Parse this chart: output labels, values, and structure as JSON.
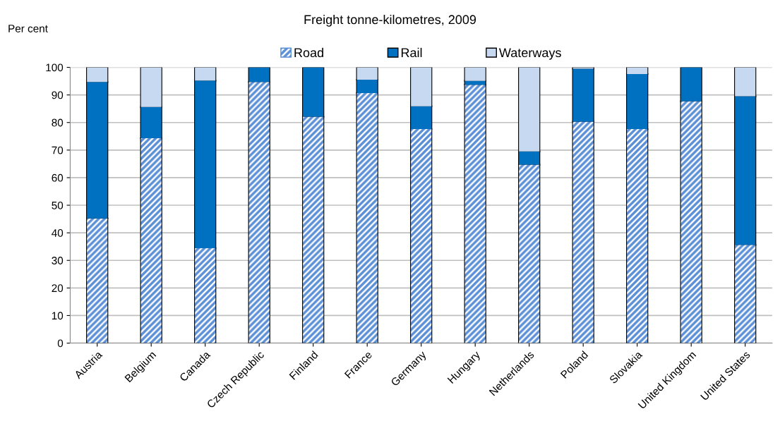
{
  "chart_data": {
    "type": "bar",
    "title": "Freight tonne-kilometres, 2009",
    "ylabel": "Per cent",
    "stacked": true,
    "categories": [
      "Austria",
      "Belgium",
      "Canada",
      "Czech Republic",
      "Finland",
      "France",
      "Germany",
      "Hungary",
      "Netherlands",
      "Poland",
      "Slovakia",
      "United Kingdom",
      "United States"
    ],
    "series": [
      {
        "name": "Road",
        "color": "#5b8fd6",
        "values": [
          45.2,
          74.3,
          34.4,
          94.7,
          82.1,
          90.7,
          77.6,
          93.7,
          64.7,
          80.3,
          77.6,
          87.7,
          35.6
        ]
      },
      {
        "name": "Rail",
        "color": "#0070c0",
        "values": [
          49.5,
          11.3,
          60.8,
          5.3,
          17.9,
          4.8,
          8.3,
          1.4,
          4.8,
          19.2,
          20.0,
          12.3,
          53.9
        ]
      },
      {
        "name": "Waterways",
        "color": "#c6d9f0",
        "values": [
          5.3,
          14.4,
          4.8,
          0,
          0,
          4.5,
          14.1,
          4.9,
          30.5,
          0.5,
          2.4,
          0,
          10.5
        ]
      }
    ],
    "ylim": [
      0,
      100
    ],
    "yticks": [
      0,
      10,
      20,
      30,
      40,
      50,
      60,
      70,
      80,
      90,
      100
    ],
    "grid": "y",
    "legend": "top"
  }
}
